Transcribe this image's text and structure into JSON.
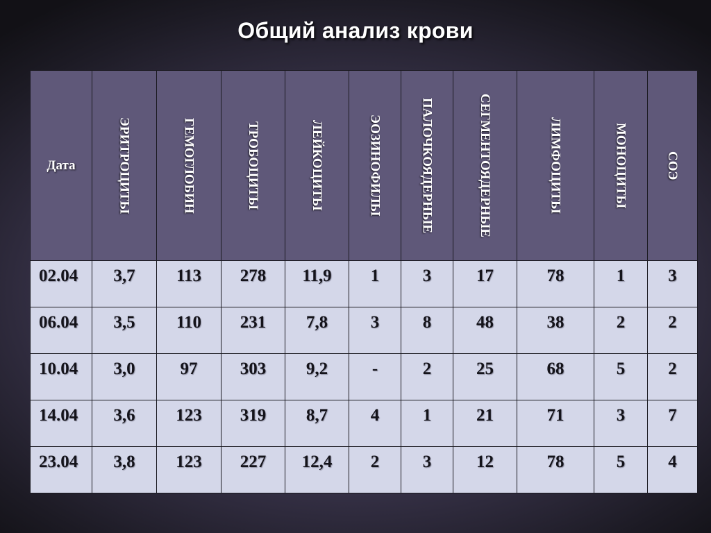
{
  "title": "Общий анализ крови",
  "table": {
    "date_header": "Дата",
    "headers": [
      "ЭРИТРОЦИТЫ",
      "ГЕМОГЛОБИН",
      "ТРОБОЦИТЫ",
      "ЛЕЙКОЦИТЫ",
      "ЭОЗИНОФИЛЫ",
      "ПАЛОЧКОЯДЕРНЫЕ",
      "СЕГМЕНТОЯДЕРНЫЕ",
      "ЛИМФОЦИТЫ",
      "МОНОЦИТЫ",
      "СОЭ"
    ],
    "rows": [
      {
        "date": "02.04",
        "values": [
          "3,7",
          "113",
          "278",
          "11,9",
          "1",
          "3",
          "17",
          "78",
          "1",
          "3"
        ]
      },
      {
        "date": "06.04",
        "values": [
          "3,5",
          "110",
          "231",
          "7,8",
          "3",
          "8",
          "48",
          "38",
          "2",
          "2"
        ]
      },
      {
        "date": "10.04",
        "values": [
          "3,0",
          "97",
          "303",
          "9,2",
          "-",
          "2",
          "25",
          "68",
          "5",
          "2"
        ]
      },
      {
        "date": "14.04",
        "values": [
          "3,6",
          "123",
          "319",
          "8,7",
          "4",
          "1",
          "21",
          "71",
          "3",
          "7"
        ]
      },
      {
        "date": "23.04",
        "values": [
          "3,8",
          "123",
          "227",
          "12,4",
          "2",
          "3",
          "12",
          "78",
          "5",
          "4"
        ]
      }
    ]
  }
}
